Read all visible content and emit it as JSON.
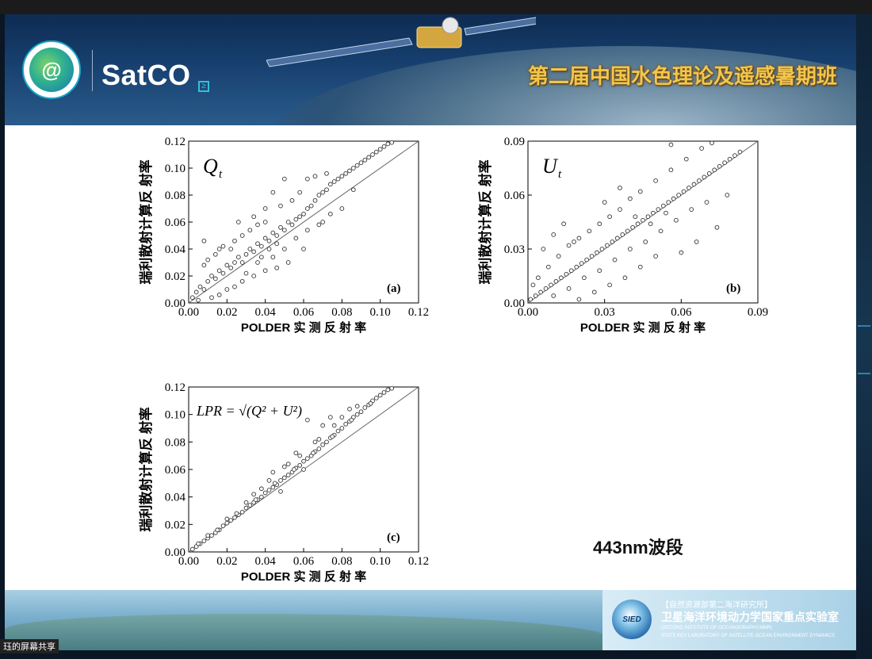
{
  "header": {
    "logo_text": "SatCO",
    "logo_badge": "≥",
    "course_title": "第二届中国水色理论及遥感暑期班"
  },
  "slide": {
    "band_label": "443nm波段"
  },
  "footer": {
    "line1": "【自然资源部第二海洋研究所】",
    "line2": "卫星海洋环境动力学国家重点实验室",
    "line3": "(SECOND INSTITUTE OF OCEANOGRAPHY,MNR)",
    "line4": "STATE KEY LABORATORY OF SATELLITE OCEAN ENVIRONMENT DYNAMICS",
    "emblem": "SIED"
  },
  "share_tag": "珏的屏幕共享",
  "chart_data": [
    {
      "type": "scatter",
      "panel": "(a)",
      "symbol": "Q",
      "subscript": "t",
      "xlabel": "POLDER 实 测 反 射 率",
      "ylabel": "瑞利散射计算反 射率",
      "xlim": [
        0,
        0.12
      ],
      "ylim": [
        0,
        0.12
      ],
      "xticks": [
        "0.00",
        "0.02",
        "0.04",
        "0.06",
        "0.08",
        "0.10",
        "0.12"
      ],
      "yticks": [
        "0.00",
        "0.02",
        "0.04",
        "0.06",
        "0.08",
        "0.10",
        "0.12"
      ],
      "reference_line": "1:1",
      "points": [
        [
          0.002,
          0.004
        ],
        [
          0.004,
          0.008
        ],
        [
          0.006,
          0.012
        ],
        [
          0.008,
          0.01
        ],
        [
          0.01,
          0.016
        ],
        [
          0.012,
          0.02
        ],
        [
          0.014,
          0.018
        ],
        [
          0.016,
          0.024
        ],
        [
          0.018,
          0.022
        ],
        [
          0.02,
          0.028
        ],
        [
          0.022,
          0.026
        ],
        [
          0.024,
          0.03
        ],
        [
          0.026,
          0.034
        ],
        [
          0.028,
          0.03
        ],
        [
          0.03,
          0.036
        ],
        [
          0.032,
          0.04
        ],
        [
          0.034,
          0.038
        ],
        [
          0.036,
          0.044
        ],
        [
          0.038,
          0.042
        ],
        [
          0.04,
          0.048
        ],
        [
          0.042,
          0.046
        ],
        [
          0.044,
          0.052
        ],
        [
          0.046,
          0.05
        ],
        [
          0.048,
          0.056
        ],
        [
          0.05,
          0.054
        ],
        [
          0.052,
          0.06
        ],
        [
          0.054,
          0.058
        ],
        [
          0.056,
          0.062
        ],
        [
          0.058,
          0.064
        ],
        [
          0.06,
          0.066
        ],
        [
          0.062,
          0.07
        ],
        [
          0.064,
          0.072
        ],
        [
          0.066,
          0.076
        ],
        [
          0.068,
          0.08
        ],
        [
          0.07,
          0.082
        ],
        [
          0.072,
          0.084
        ],
        [
          0.074,
          0.088
        ],
        [
          0.076,
          0.09
        ],
        [
          0.078,
          0.092
        ],
        [
          0.08,
          0.094
        ],
        [
          0.082,
          0.096
        ],
        [
          0.084,
          0.098
        ],
        [
          0.086,
          0.1
        ],
        [
          0.088,
          0.102
        ],
        [
          0.09,
          0.104
        ],
        [
          0.092,
          0.106
        ],
        [
          0.094,
          0.108
        ],
        [
          0.096,
          0.11
        ],
        [
          0.098,
          0.112
        ],
        [
          0.1,
          0.114
        ],
        [
          0.102,
          0.116
        ],
        [
          0.104,
          0.118
        ],
        [
          0.106,
          0.119
        ],
        [
          0.008,
          0.028
        ],
        [
          0.01,
          0.032
        ],
        [
          0.014,
          0.036
        ],
        [
          0.018,
          0.042
        ],
        [
          0.022,
          0.04
        ],
        [
          0.024,
          0.046
        ],
        [
          0.028,
          0.05
        ],
        [
          0.032,
          0.054
        ],
        [
          0.036,
          0.058
        ],
        [
          0.04,
          0.06
        ],
        [
          0.026,
          0.06
        ],
        [
          0.034,
          0.064
        ],
        [
          0.044,
          0.082
        ],
        [
          0.05,
          0.092
        ],
        [
          0.04,
          0.07
        ],
        [
          0.048,
          0.072
        ],
        [
          0.054,
          0.076
        ],
        [
          0.058,
          0.082
        ],
        [
          0.062,
          0.092
        ],
        [
          0.066,
          0.094
        ],
        [
          0.072,
          0.096
        ],
        [
          0.06,
          0.04
        ],
        [
          0.052,
          0.03
        ],
        [
          0.046,
          0.026
        ],
        [
          0.04,
          0.024
        ],
        [
          0.034,
          0.02
        ],
        [
          0.028,
          0.016
        ],
        [
          0.02,
          0.01
        ],
        [
          0.016,
          0.006
        ],
        [
          0.012,
          0.004
        ],
        [
          0.024,
          0.012
        ],
        [
          0.03,
          0.022
        ],
        [
          0.036,
          0.03
        ],
        [
          0.044,
          0.034
        ],
        [
          0.05,
          0.04
        ],
        [
          0.056,
          0.048
        ],
        [
          0.062,
          0.054
        ],
        [
          0.068,
          0.058
        ],
        [
          0.074,
          0.066
        ],
        [
          0.08,
          0.07
        ],
        [
          0.086,
          0.084
        ],
        [
          0.07,
          0.06
        ],
        [
          0.008,
          0.046
        ],
        [
          0.016,
          0.04
        ],
        [
          0.038,
          0.034
        ],
        [
          0.042,
          0.04
        ],
        [
          0.046,
          0.044
        ],
        [
          0.005,
          0.002
        ]
      ]
    },
    {
      "type": "scatter",
      "panel": "(b)",
      "symbol": "U",
      "subscript": "t",
      "xlabel": "POLDER 实 测 反 射 率",
      "ylabel": "瑞利散射计算反 射率",
      "xlim": [
        0,
        0.09
      ],
      "ylim": [
        0,
        0.09
      ],
      "xticks": [
        "0.00",
        "0.03",
        "0.06",
        "0.09"
      ],
      "yticks": [
        "0.00",
        "0.03",
        "0.06",
        "0.09"
      ],
      "reference_line": "1:1",
      "points": [
        [
          0.001,
          0.002
        ],
        [
          0.003,
          0.004
        ],
        [
          0.005,
          0.006
        ],
        [
          0.007,
          0.008
        ],
        [
          0.009,
          0.01
        ],
        [
          0.011,
          0.012
        ],
        [
          0.013,
          0.014
        ],
        [
          0.015,
          0.016
        ],
        [
          0.017,
          0.018
        ],
        [
          0.019,
          0.02
        ],
        [
          0.021,
          0.022
        ],
        [
          0.023,
          0.024
        ],
        [
          0.025,
          0.026
        ],
        [
          0.027,
          0.028
        ],
        [
          0.029,
          0.03
        ],
        [
          0.031,
          0.032
        ],
        [
          0.033,
          0.034
        ],
        [
          0.035,
          0.036
        ],
        [
          0.037,
          0.038
        ],
        [
          0.039,
          0.04
        ],
        [
          0.041,
          0.042
        ],
        [
          0.043,
          0.044
        ],
        [
          0.045,
          0.046
        ],
        [
          0.047,
          0.048
        ],
        [
          0.049,
          0.05
        ],
        [
          0.051,
          0.052
        ],
        [
          0.053,
          0.054
        ],
        [
          0.055,
          0.056
        ],
        [
          0.057,
          0.058
        ],
        [
          0.059,
          0.06
        ],
        [
          0.061,
          0.062
        ],
        [
          0.063,
          0.064
        ],
        [
          0.065,
          0.066
        ],
        [
          0.067,
          0.068
        ],
        [
          0.069,
          0.07
        ],
        [
          0.071,
          0.072
        ],
        [
          0.073,
          0.074
        ],
        [
          0.075,
          0.076
        ],
        [
          0.077,
          0.078
        ],
        [
          0.079,
          0.08
        ],
        [
          0.081,
          0.082
        ],
        [
          0.083,
          0.084
        ],
        [
          0.004,
          0.014
        ],
        [
          0.008,
          0.02
        ],
        [
          0.012,
          0.026
        ],
        [
          0.016,
          0.032
        ],
        [
          0.02,
          0.036
        ],
        [
          0.024,
          0.04
        ],
        [
          0.028,
          0.044
        ],
        [
          0.032,
          0.048
        ],
        [
          0.036,
          0.052
        ],
        [
          0.04,
          0.058
        ],
        [
          0.044,
          0.062
        ],
        [
          0.05,
          0.068
        ],
        [
          0.056,
          0.074
        ],
        [
          0.062,
          0.08
        ],
        [
          0.068,
          0.086
        ],
        [
          0.056,
          0.088
        ],
        [
          0.072,
          0.089
        ],
        [
          0.01,
          0.004
        ],
        [
          0.016,
          0.008
        ],
        [
          0.022,
          0.014
        ],
        [
          0.028,
          0.018
        ],
        [
          0.034,
          0.024
        ],
        [
          0.04,
          0.03
        ],
        [
          0.046,
          0.034
        ],
        [
          0.052,
          0.04
        ],
        [
          0.058,
          0.046
        ],
        [
          0.064,
          0.052
        ],
        [
          0.07,
          0.056
        ],
        [
          0.05,
          0.026
        ],
        [
          0.044,
          0.02
        ],
        [
          0.038,
          0.014
        ],
        [
          0.032,
          0.01
        ],
        [
          0.026,
          0.006
        ],
        [
          0.02,
          0.002
        ],
        [
          0.06,
          0.028
        ],
        [
          0.066,
          0.034
        ],
        [
          0.074,
          0.042
        ],
        [
          0.078,
          0.06
        ],
        [
          0.006,
          0.03
        ],
        [
          0.01,
          0.038
        ],
        [
          0.014,
          0.044
        ],
        [
          0.018,
          0.034
        ],
        [
          0.002,
          0.01
        ],
        [
          0.03,
          0.056
        ],
        [
          0.036,
          0.064
        ],
        [
          0.042,
          0.048
        ],
        [
          0.048,
          0.044
        ],
        [
          0.054,
          0.05
        ]
      ]
    },
    {
      "type": "scatter",
      "panel": "(c)",
      "formula": "LPR = √(Q² + U²)",
      "xlabel": "POLDER 实 测 反 射 率",
      "ylabel": "瑞利散射计算反 射率",
      "xlim": [
        0,
        0.12
      ],
      "ylim": [
        0,
        0.12
      ],
      "xticks": [
        "0.00",
        "0.02",
        "0.04",
        "0.06",
        "0.08",
        "0.10",
        "0.12"
      ],
      "yticks": [
        "0.00",
        "0.02",
        "0.04",
        "0.06",
        "0.08",
        "0.10",
        "0.12"
      ],
      "reference_line": "1:1",
      "points": [
        [
          0.002,
          0.002
        ],
        [
          0.004,
          0.004
        ],
        [
          0.006,
          0.006
        ],
        [
          0.008,
          0.008
        ],
        [
          0.01,
          0.01
        ],
        [
          0.012,
          0.012
        ],
        [
          0.014,
          0.014
        ],
        [
          0.016,
          0.016
        ],
        [
          0.018,
          0.019
        ],
        [
          0.02,
          0.021
        ],
        [
          0.022,
          0.023
        ],
        [
          0.024,
          0.025
        ],
        [
          0.026,
          0.027
        ],
        [
          0.028,
          0.029
        ],
        [
          0.03,
          0.032
        ],
        [
          0.032,
          0.034
        ],
        [
          0.034,
          0.036
        ],
        [
          0.036,
          0.038
        ],
        [
          0.038,
          0.04
        ],
        [
          0.04,
          0.043
        ],
        [
          0.042,
          0.045
        ],
        [
          0.044,
          0.047
        ],
        [
          0.046,
          0.049
        ],
        [
          0.048,
          0.052
        ],
        [
          0.05,
          0.054
        ],
        [
          0.052,
          0.056
        ],
        [
          0.054,
          0.058
        ],
        [
          0.056,
          0.061
        ],
        [
          0.058,
          0.063
        ],
        [
          0.06,
          0.066
        ],
        [
          0.062,
          0.068
        ],
        [
          0.064,
          0.07
        ],
        [
          0.066,
          0.073
        ],
        [
          0.068,
          0.075
        ],
        [
          0.07,
          0.078
        ],
        [
          0.072,
          0.08
        ],
        [
          0.074,
          0.083
        ],
        [
          0.076,
          0.085
        ],
        [
          0.078,
          0.088
        ],
        [
          0.08,
          0.09
        ],
        [
          0.082,
          0.093
        ],
        [
          0.084,
          0.095
        ],
        [
          0.086,
          0.098
        ],
        [
          0.088,
          0.1
        ],
        [
          0.09,
          0.102
        ],
        [
          0.092,
          0.105
        ],
        [
          0.094,
          0.107
        ],
        [
          0.096,
          0.11
        ],
        [
          0.098,
          0.112
        ],
        [
          0.1,
          0.114
        ],
        [
          0.102,
          0.116
        ],
        [
          0.104,
          0.118
        ],
        [
          0.106,
          0.119
        ],
        [
          0.005,
          0.006
        ],
        [
          0.015,
          0.016
        ],
        [
          0.025,
          0.028
        ],
        [
          0.035,
          0.038
        ],
        [
          0.045,
          0.05
        ],
        [
          0.055,
          0.06
        ],
        [
          0.065,
          0.072
        ],
        [
          0.075,
          0.084
        ],
        [
          0.085,
          0.096
        ],
        [
          0.095,
          0.108
        ],
        [
          0.07,
          0.092
        ],
        [
          0.074,
          0.098
        ],
        [
          0.062,
          0.096
        ],
        [
          0.052,
          0.064
        ],
        [
          0.048,
          0.044
        ],
        [
          0.06,
          0.06
        ],
        [
          0.038,
          0.046
        ],
        [
          0.03,
          0.036
        ],
        [
          0.044,
          0.058
        ],
        [
          0.056,
          0.072
        ],
        [
          0.068,
          0.082
        ],
        [
          0.08,
          0.098
        ],
        [
          0.088,
          0.106
        ],
        [
          0.02,
          0.024
        ],
        [
          0.01,
          0.012
        ],
        [
          0.084,
          0.104
        ],
        [
          0.076,
          0.092
        ],
        [
          0.066,
          0.08
        ],
        [
          0.058,
          0.07
        ],
        [
          0.05,
          0.062
        ],
        [
          0.042,
          0.052
        ],
        [
          0.034,
          0.042
        ]
      ]
    }
  ]
}
